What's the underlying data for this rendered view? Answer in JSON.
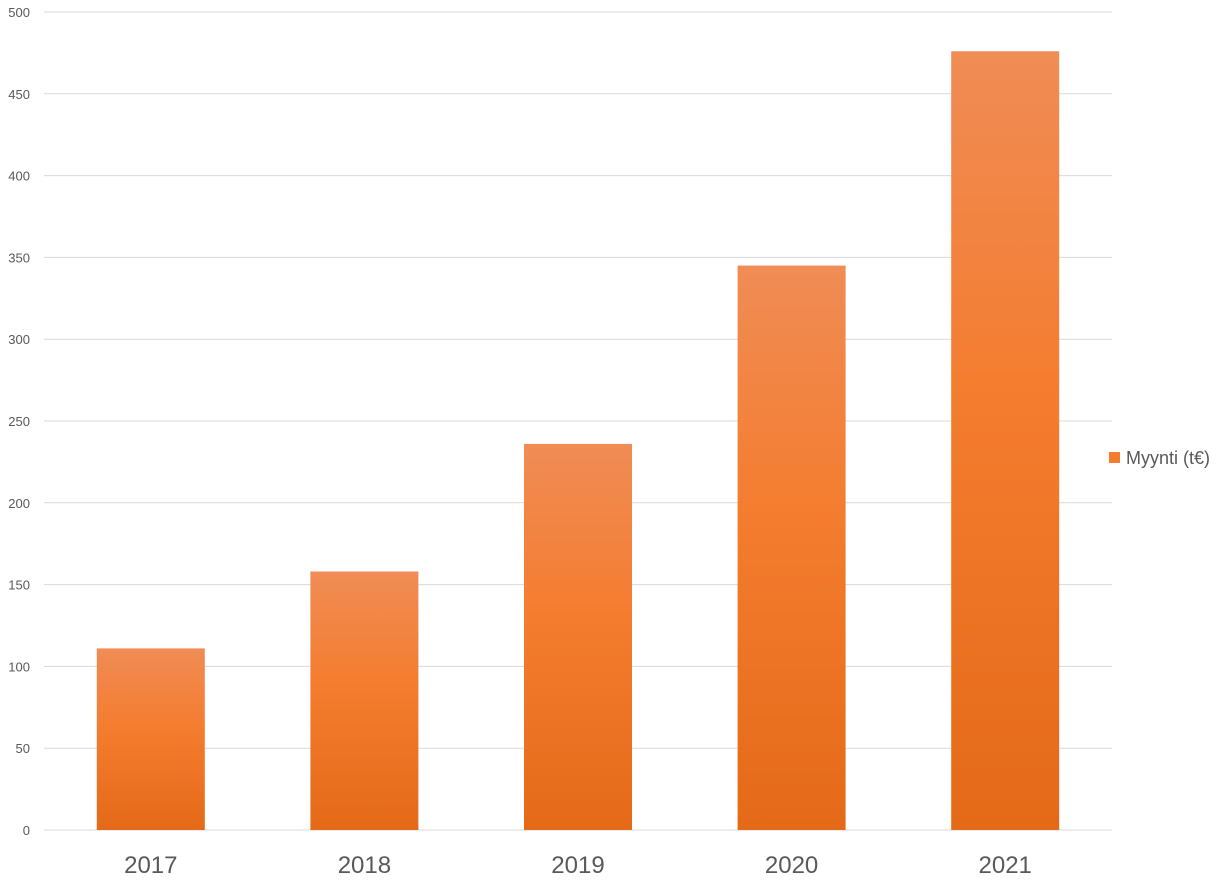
{
  "chart_data": {
    "type": "bar",
    "categories": [
      "2017",
      "2018",
      "2019",
      "2020",
      "2021"
    ],
    "series": [
      {
        "name": "Myynti (t€)",
        "values": [
          111,
          158,
          236,
          345,
          476
        ]
      }
    ],
    "title": "",
    "xlabel": "",
    "ylabel": "",
    "ylim": [
      0,
      500
    ],
    "yticks": [
      0,
      50,
      100,
      150,
      200,
      250,
      300,
      350,
      400,
      450,
      500
    ],
    "grid": true,
    "legend_position": "right",
    "colors": {
      "bar_top": "#F08C55",
      "bar_mid": "#F47C2E",
      "bar_bottom": "#E46A18",
      "grid": "#D9D9D9",
      "text": "#595959"
    }
  }
}
